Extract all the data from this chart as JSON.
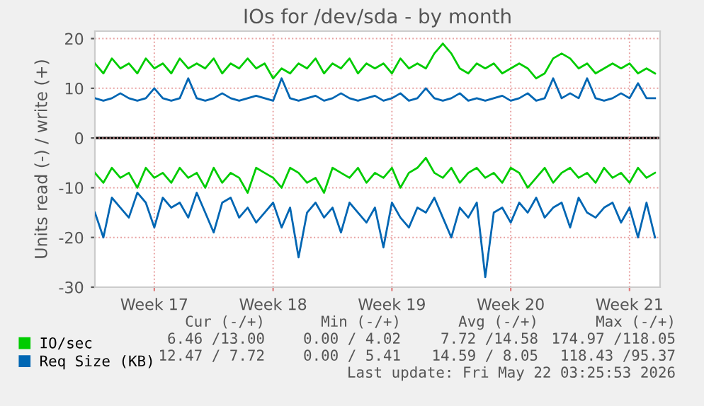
{
  "chart_data": {
    "type": "line",
    "title": "IOs for /dev/sda - by month",
    "ylabel": "Units read (-) / write (+)",
    "ylim": [
      -30,
      21.5
    ],
    "yticks": [
      -30,
      -20,
      -10,
      0,
      10,
      20
    ],
    "categories": [
      null,
      null,
      null,
      null,
      null,
      null,
      null,
      "Week 17",
      null,
      null,
      null,
      null,
      null,
      null,
      null,
      null,
      null,
      null,
      null,
      null,
      null,
      "Week 18",
      null,
      null,
      null,
      null,
      null,
      null,
      null,
      null,
      null,
      null,
      null,
      null,
      null,
      "Week 19",
      null,
      null,
      null,
      null,
      null,
      null,
      null,
      null,
      null,
      null,
      null,
      null,
      null,
      "Week 20",
      null,
      null,
      null,
      null,
      null,
      null,
      null,
      null,
      null,
      null,
      null,
      null,
      null,
      "Week 21",
      null,
      null,
      null
    ],
    "grid": true,
    "legend": "bottom",
    "marker": "none",
    "line_style": "solid",
    "ref_lines": [
      {
        "axis": "y",
        "value": 0,
        "label": null,
        "color": "#000000"
      }
    ],
    "series": [
      {
        "name": "IO/sec",
        "color": "#00cc00",
        "values": [
          15,
          13,
          16,
          14,
          15,
          13,
          16,
          14,
          15,
          13,
          16,
          14,
          15,
          14,
          16,
          13,
          15,
          14,
          16,
          14,
          15,
          12,
          14,
          13,
          15,
          14,
          16,
          13,
          15,
          14,
          16,
          13,
          15,
          14,
          15,
          13,
          16,
          14,
          15,
          14,
          17,
          19,
          17,
          14,
          13,
          15,
          14,
          15,
          13,
          14,
          15,
          14,
          12,
          13,
          16,
          17,
          16,
          14,
          15,
          13,
          14,
          15,
          14,
          15,
          13,
          14,
          13
        ]
      },
      {
        "name": "Req Size (KB)",
        "color": "#0066b3",
        "values": [
          8,
          7.5,
          8,
          9,
          8,
          7.5,
          8,
          10,
          8,
          7.5,
          8,
          12,
          8,
          7.5,
          8,
          9,
          8,
          7.5,
          8,
          8.5,
          8,
          7.5,
          12,
          8,
          7.5,
          8,
          8.5,
          7.5,
          8,
          9,
          8,
          7.5,
          8,
          8.5,
          7.5,
          8,
          9,
          7.5,
          8,
          10,
          8,
          7.5,
          8,
          9,
          7.5,
          8,
          7.5,
          8,
          8.5,
          7.5,
          8,
          9,
          7.5,
          8,
          12,
          8,
          9,
          8,
          12,
          8,
          7.5,
          8,
          9,
          8,
          11,
          8,
          8
        ]
      },
      {
        "color": "#00cc00",
        "values": [
          -7,
          -9,
          -6,
          -8,
          -7,
          -10,
          -6,
          -8,
          -7,
          -9,
          -6,
          -8,
          -7,
          -10,
          -6,
          -9,
          -7,
          -8,
          -11,
          -6,
          -7,
          -8,
          -10,
          -6,
          -7,
          -9,
          -8,
          -11,
          -6,
          -7,
          -8,
          -6,
          -9,
          -7,
          -8,
          -6,
          -10,
          -7,
          -6,
          -4,
          -7,
          -8,
          -6,
          -9,
          -7,
          -6,
          -8,
          -7,
          -9,
          -6,
          -7,
          -10,
          -8,
          -6,
          -9,
          -7,
          -6,
          -8,
          -7,
          -9,
          -6,
          -8,
          -7,
          -9,
          -6,
          -8,
          -7
        ]
      },
      {
        "color": "#0066b3",
        "values": [
          -15,
          -20,
          -12,
          -14,
          -16,
          -11,
          -13,
          -18,
          -12,
          -14,
          -13,
          -16,
          -11,
          -15,
          -19,
          -13,
          -12,
          -16,
          -14,
          -17,
          -15,
          -13,
          -18,
          -14,
          -24,
          -15,
          -13,
          -16,
          -14,
          -19,
          -13,
          -15,
          -17,
          -14,
          -22,
          -13,
          -16,
          -18,
          -14,
          -15,
          -12,
          -16,
          -20,
          -14,
          -16,
          -13,
          -28,
          -15,
          -14,
          -17,
          -13,
          -15,
          -12,
          -16,
          -14,
          -13,
          -18,
          -12,
          -15,
          -16,
          -14,
          -13,
          -17,
          -14,
          -20,
          -13,
          -20
        ]
      }
    ],
    "annotations": [
      "Cur (-/+)",
      "Min (-/+)",
      "Avg (-/+)",
      "Max (-/+)",
      "6.46 /13.00",
      "0.00 / 4.02",
      "7.72 /14.58",
      "174.97 /118.05",
      "12.47 / 7.72",
      "0.00 / 5.41",
      "14.59 / 8.05",
      "118.43 /95.37",
      "Last update: Fri May 22 03:25:53 2026"
    ]
  }
}
